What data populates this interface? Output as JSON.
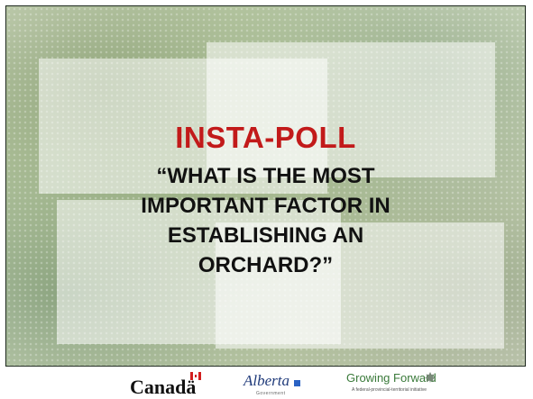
{
  "slide": {
    "title": "INSTA-POLL",
    "question_lines": [
      "“WHAT IS THE MOST",
      "IMPORTANT FACTOR IN",
      "ESTABLISHING AN",
      "ORCHARD?”"
    ]
  },
  "footer": {
    "logos": {
      "canada": "Canadä",
      "alberta": "Alberta",
      "alberta_sub": "Government",
      "growing_forward": "Growing Forward",
      "growing_forward_sub": "A federal-provincial-territorial initiative"
    }
  },
  "colors": {
    "title": "#c21a1a",
    "question": "#111111",
    "frame": "#1f2a1f"
  }
}
